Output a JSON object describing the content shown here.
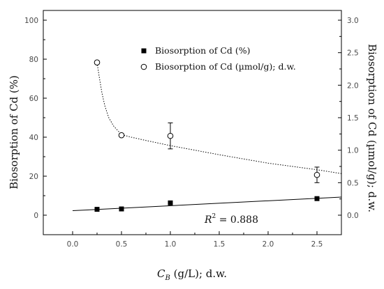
{
  "chart_data": {
    "type": "scatter",
    "title": "",
    "xlabel": {
      "base": "C",
      "sub": "B",
      "rest": " (g/L); d.w."
    },
    "ylabel_left": "Biosorption of Cd (%)",
    "ylabel_right": "Biosorption of Cd (µmol/g); d.w.",
    "xlim": [
      -0.3,
      2.75
    ],
    "ylim_left": [
      -10,
      105
    ],
    "ylim_right": [
      -0.3,
      3.15
    ],
    "x_ticks": [
      0.0,
      0.5,
      1.0,
      1.5,
      2.0,
      2.5
    ],
    "x_tick_labels": [
      "0.0",
      "0.5",
      "1.0",
      "1.5",
      "2.0",
      "2.5"
    ],
    "y_left_ticks": [
      0,
      20,
      40,
      60,
      80,
      100
    ],
    "y_left_tick_labels": [
      "0",
      "20",
      "40",
      "60",
      "80",
      "100"
    ],
    "y_right_ticks": [
      0.0,
      0.5,
      1.0,
      1.5,
      2.0,
      2.5,
      3.0
    ],
    "y_right_tick_labels": [
      "0.0",
      "0.5",
      "1.0",
      "1.5",
      "2.0",
      "2.5",
      "3.0"
    ],
    "grid": false,
    "legend_position": "top-center",
    "series": [
      {
        "name": "Biosorption of Cd (%)",
        "axis": "left",
        "marker": "filled-square",
        "x": [
          0.25,
          0.5,
          1.0,
          2.5
        ],
        "y": [
          3.0,
          3.2,
          6.3,
          8.5
        ],
        "fit": {
          "type": "linear",
          "style": "solid",
          "x_range": [
            0.0,
            2.75
          ],
          "y_at_start": 2.3,
          "y_at_end": 9.3
        }
      },
      {
        "name": "Biosorption of Cd (µmol/g); d.w.",
        "axis": "right",
        "marker": "open-circle",
        "x": [
          0.25,
          0.5,
          1.0,
          2.5
        ],
        "y": [
          2.35,
          1.23,
          1.22,
          0.62
        ],
        "error": [
          0.0,
          0.0,
          0.2,
          0.12
        ],
        "fit": {
          "style": "dotted",
          "x": [
            0.25,
            0.27,
            0.3,
            0.33,
            0.37,
            0.42,
            0.5,
            0.6,
            0.75,
            1.0,
            1.5,
            2.0,
            2.5,
            2.75
          ],
          "y": [
            2.35,
            2.15,
            1.88,
            1.68,
            1.5,
            1.37,
            1.24,
            1.2,
            1.15,
            1.07,
            0.93,
            0.8,
            0.7,
            0.64
          ]
        }
      }
    ],
    "annotations": [
      {
        "text_base": "R",
        "text_sup": "2",
        "text_rest": " = 0.888",
        "x": 1.35,
        "y_left": 0
      }
    ],
    "colors": {
      "axis": "#000000",
      "line": "#000000",
      "text": "#111111",
      "tick_text": "#4a4a4a"
    }
  }
}
